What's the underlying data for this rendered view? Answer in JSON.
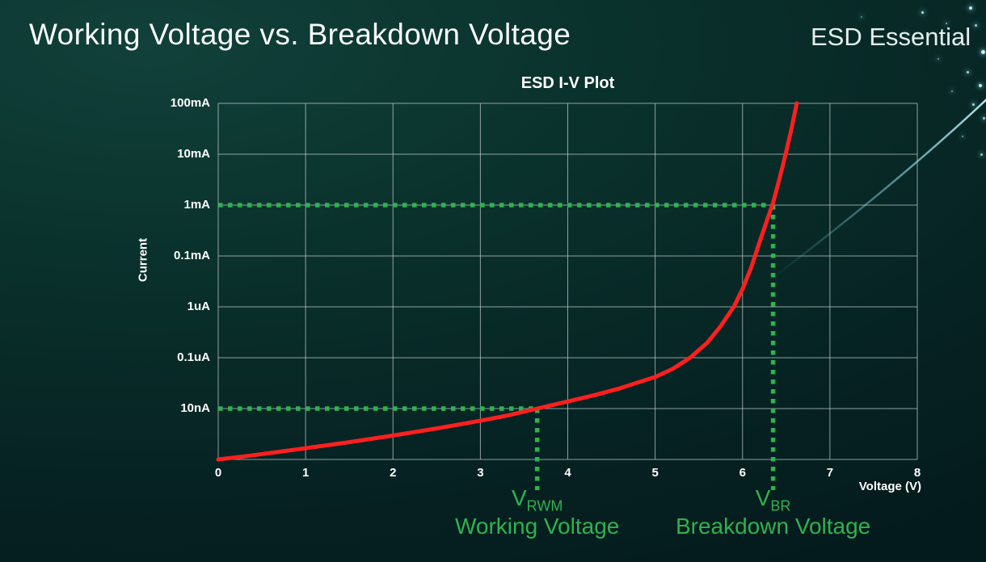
{
  "page": {
    "title": "Working Voltage vs. Breakdown Voltage",
    "brand": "ESD Essential"
  },
  "colors": {
    "curve_red": "#ff1f1f",
    "marker_green": "#2db350",
    "background_teal": "#082a27",
    "grid_gray": "#c3d0ce"
  },
  "chart_data": {
    "type": "line",
    "title": "ESD I-V Plot",
    "xlabel": "Voltage (V)",
    "ylabel": "Current",
    "grid": true,
    "xlim": [
      0,
      8
    ],
    "x_ticks": [
      0,
      1,
      2,
      3,
      4,
      5,
      6,
      7,
      8
    ],
    "y_scale": "log",
    "y_decades": 7,
    "y_tick_labels_top_to_bottom": [
      "100mA",
      "10mA",
      "1mA",
      "0.1mA",
      "1uA",
      "0.1uA",
      "10nA"
    ],
    "series": [
      {
        "name": "ESD I-V curve",
        "color": "#ff1f1f",
        "points_v_decade": [
          [
            0,
            0
          ],
          [
            0.3,
            0.06
          ],
          [
            0.7,
            0.15
          ],
          [
            1,
            0.22
          ],
          [
            1.5,
            0.34
          ],
          [
            2,
            0.47
          ],
          [
            2.5,
            0.61
          ],
          [
            3,
            0.76
          ],
          [
            3.3,
            0.86
          ],
          [
            3.65,
            1.0
          ],
          [
            4,
            1.14
          ],
          [
            4.3,
            1.26
          ],
          [
            4.6,
            1.4
          ],
          [
            5,
            1.62
          ],
          [
            5.2,
            1.78
          ],
          [
            5.4,
            2.0
          ],
          [
            5.6,
            2.3
          ],
          [
            5.75,
            2.62
          ],
          [
            5.9,
            3.0
          ],
          [
            6.0,
            3.35
          ],
          [
            6.1,
            3.78
          ],
          [
            6.2,
            4.3
          ],
          [
            6.3,
            4.8
          ],
          [
            6.35,
            5.05
          ],
          [
            6.42,
            5.5
          ],
          [
            6.5,
            6.05
          ],
          [
            6.56,
            6.5
          ],
          [
            6.62,
            7.0
          ]
        ]
      }
    ],
    "annotations": {
      "working_voltage": {
        "v": 3.65,
        "current_decade": 1,
        "current_label": "10nA",
        "label_main": "V",
        "label_sub": "RWM",
        "caption": "Working Voltage",
        "color": "#2db350"
      },
      "breakdown_voltage": {
        "v": 6.35,
        "current_decade": 5,
        "current_label": "1mA",
        "label_main": "V",
        "label_sub": "BR",
        "caption": "Breakdown Voltage",
        "color": "#2db350"
      }
    }
  }
}
